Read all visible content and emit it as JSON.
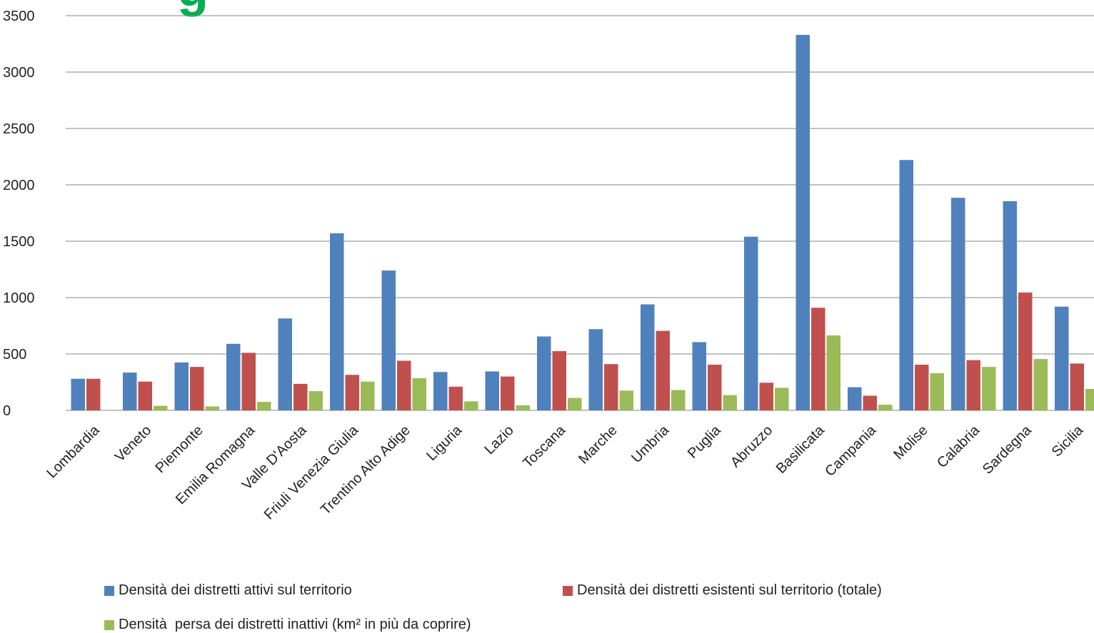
{
  "header": {
    "fragment_text": "g"
  },
  "chart_data": {
    "type": "bar",
    "categories": [
      "Lombardia",
      "Veneto",
      "Piemonte",
      "Emilia Romagna",
      "Valle D'Aosta",
      "Friuli Venezia Giulia",
      "Trentino Alto Adige",
      "Liguria",
      "Lazio",
      "Toscana",
      "Marche",
      "Umbria",
      "Puglia",
      "Abruzzo",
      "Basilicata",
      "Campania",
      "Molise",
      "Calabria",
      "Sardegna",
      "Sicilia"
    ],
    "series": [
      {
        "name": "Densità dei distretti attivi sul territorio",
        "color": "#4f81bd",
        "values": [
          280,
          335,
          425,
          590,
          815,
          1570,
          1240,
          340,
          345,
          655,
          720,
          940,
          605,
          1540,
          3330,
          205,
          2220,
          1885,
          1855,
          920
        ]
      },
      {
        "name": "Densità dei distretti esistenti sul territorio (totale)",
        "color": "#c0504d",
        "values": [
          280,
          255,
          385,
          510,
          235,
          315,
          440,
          210,
          300,
          525,
          410,
          705,
          405,
          245,
          910,
          130,
          405,
          445,
          1045,
          415
        ]
      },
      {
        "name": "Densità  persa dei distretti inattivi (km² in più da coprire)",
        "color": "#9bbb59",
        "values": [
          0,
          40,
          35,
          75,
          170,
          255,
          285,
          80,
          45,
          110,
          175,
          180,
          135,
          200,
          665,
          50,
          330,
          385,
          455,
          190
        ]
      }
    ],
    "y_ticks": [
      "0",
      "500",
      "1000",
      "1500",
      "2000",
      "2500",
      "3000",
      "3500"
    ],
    "ylim": [
      0,
      3500
    ],
    "grid": true,
    "legend_position": "bottom"
  }
}
